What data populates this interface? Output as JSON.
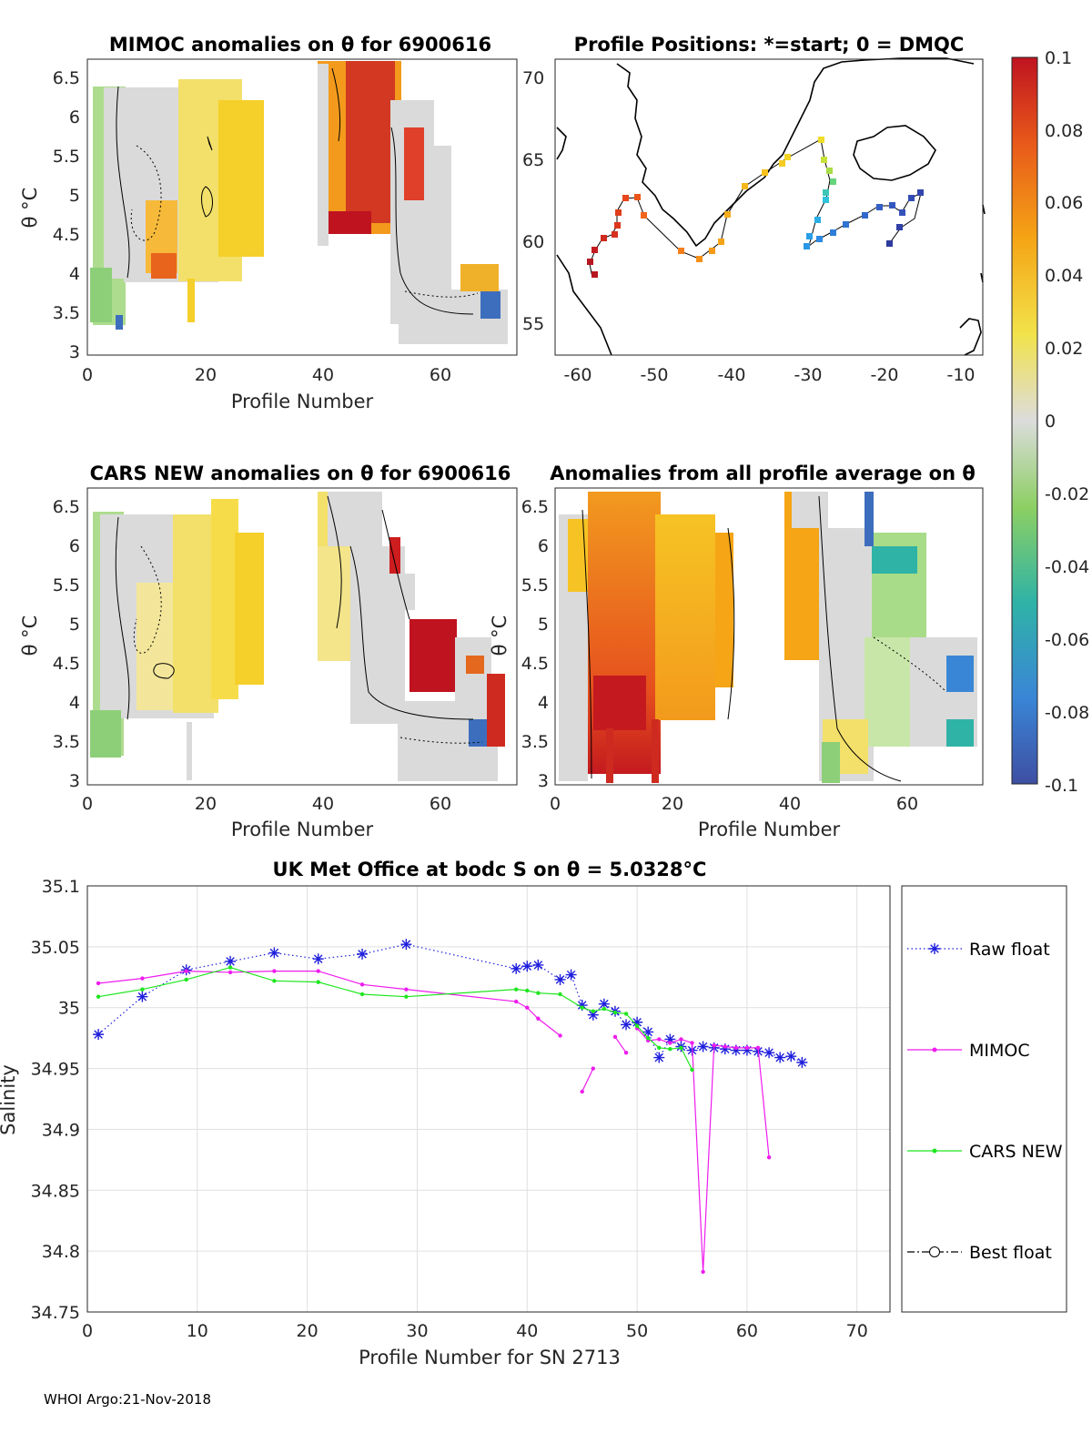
{
  "footer": "WHOI Argo:21-Nov-2018",
  "colorbar": {
    "ticks": [
      "0.1",
      "0.08",
      "0.06",
      "0.04",
      "0.02",
      "0",
      "-0.02",
      "-0.04",
      "-0.06",
      "-0.08",
      "-0.1"
    ],
    "range": [
      -0.1,
      0.1
    ]
  },
  "panel_mimoc": {
    "title": "MIMOC anomalies on θ  for 6900616",
    "xlabel": "Profile Number",
    "ylabel": "θ °C",
    "xticks": [
      "0",
      "20",
      "40",
      "60"
    ],
    "yticks": [
      "6.5",
      "6",
      "5.5",
      "5",
      "4.5",
      "4",
      "3.5",
      "3"
    ]
  },
  "panel_positions": {
    "title": "Profile Positions: *=start; 0 = DMQC",
    "xticks": [
      "-60",
      "-50",
      "-40",
      "-30",
      "-20",
      "-10"
    ],
    "yticks": [
      "70",
      "65",
      "60",
      "55"
    ]
  },
  "panel_cars": {
    "title": "CARS NEW anomalies on θ for 6900616",
    "xlabel": "Profile Number",
    "ylabel": "θ °C",
    "xticks": [
      "0",
      "20",
      "40",
      "60"
    ],
    "yticks": [
      "6.5",
      "6",
      "5.5",
      "5",
      "4.5",
      "4",
      "3.5",
      "3"
    ]
  },
  "panel_allavg": {
    "title": "Anomalies from all profile average on θ",
    "xlabel": "Profile Number",
    "ylabel": "θ °C",
    "xticks": [
      "0",
      "20",
      "40",
      "60"
    ],
    "yticks": [
      "6.5",
      "6",
      "5.5",
      "5",
      "4.5",
      "4",
      "3.5",
      "3"
    ]
  },
  "chart_data": {
    "type": "line",
    "title": "UK Met Office at bodc S on θ = 5.0328°C",
    "xlabel": "Profile Number for SN 2713",
    "ylabel": "Salinity",
    "xlim": [
      0,
      73
    ],
    "ylim": [
      34.75,
      35.1
    ],
    "xticks": [
      "0",
      "10",
      "20",
      "30",
      "40",
      "50",
      "60",
      "70"
    ],
    "yticks": [
      "35.1",
      "35.05",
      "35",
      "34.95",
      "34.9",
      "34.85",
      "34.8",
      "34.75"
    ],
    "series": [
      {
        "name": "Raw float",
        "color": "#1f1fdd",
        "marker": "asterisk",
        "line": "dotted",
        "x": [
          1,
          5,
          9,
          13,
          17,
          21,
          25,
          29,
          39,
          40,
          41,
          43,
          44,
          45,
          46,
          47,
          48,
          49,
          50,
          51,
          52,
          53,
          54,
          55,
          56,
          57,
          58,
          59,
          60,
          61,
          62,
          63,
          64,
          65
        ],
        "y": [
          34.978,
          35.009,
          35.031,
          35.038,
          35.045,
          35.04,
          35.044,
          35.052,
          35.032,
          35.034,
          35.035,
          35.023,
          35.027,
          35.002,
          34.994,
          35.003,
          34.997,
          34.986,
          34.988,
          34.98,
          34.959,
          34.974,
          34.968,
          34.965,
          34.968,
          34.967,
          34.966,
          34.965,
          34.965,
          34.964,
          34.963,
          34.959,
          34.96,
          34.955
        ]
      },
      {
        "name": "MIMOC",
        "color": "#ee1cee",
        "marker": "dot",
        "line": "solid",
        "segments": [
          {
            "x": [
              1,
              5,
              9,
              13,
              17,
              21,
              25,
              29,
              39,
              40,
              41,
              43
            ],
            "y": [
              35.02,
              35.024,
              35.03,
              35.029,
              35.03,
              35.03,
              35.019,
              35.015,
              35.005,
              35.0,
              34.991,
              34.977
            ]
          },
          {
            "x": [
              45,
              46
            ],
            "y": [
              34.931,
              34.95
            ]
          },
          {
            "x": [
              48,
              49
            ],
            "y": [
              34.976,
              34.963
            ]
          },
          {
            "x": [
              50,
              51,
              52,
              53,
              54,
              55,
              56,
              57,
              58,
              59,
              60,
              61,
              62
            ],
            "y": [
              34.983,
              34.973,
              34.974,
              34.971,
              34.974,
              34.971,
              34.783,
              34.969,
              34.968,
              34.967,
              34.967,
              34.967,
              34.877
            ]
          }
        ]
      },
      {
        "name": "CARS NEW",
        "color": "#1ee61e",
        "marker": "dot",
        "line": "solid",
        "x": [
          1,
          5,
          9,
          13,
          17,
          21,
          25,
          29,
          39,
          40,
          41,
          43,
          45,
          46,
          47,
          48,
          49,
          50,
          51,
          52,
          53,
          54,
          55
        ],
        "y": [
          35.009,
          35.015,
          35.023,
          35.033,
          35.022,
          35.021,
          35.011,
          35.009,
          35.015,
          35.014,
          35.012,
          35.011,
          35.0,
          34.997,
          34.999,
          34.996,
          34.995,
          34.985,
          34.975,
          34.967,
          34.966,
          34.967,
          34.949
        ]
      },
      {
        "name": "Best float",
        "color": "#000000",
        "marker": "circle",
        "line": "dashdot",
        "x": [],
        "y": []
      }
    ]
  }
}
